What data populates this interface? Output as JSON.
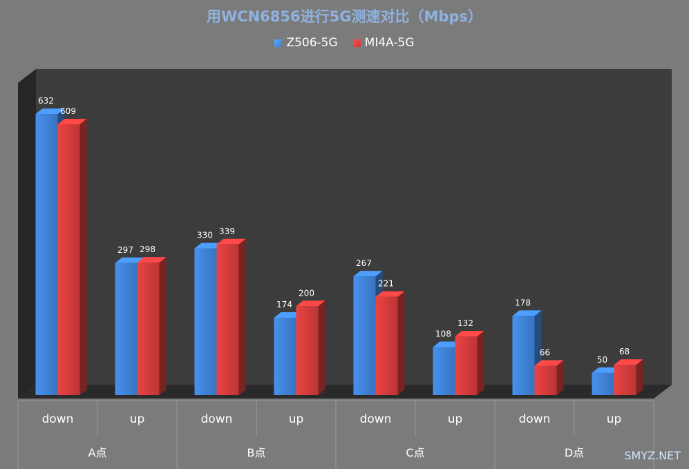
{
  "chart_data": {
    "type": "bar",
    "title": "用WCN6856进行5G测速对比（Mbps）",
    "groups": [
      "A点",
      "B点",
      "C点",
      "D点"
    ],
    "subcategories": [
      "down",
      "up"
    ],
    "categories": [
      "A点 down",
      "A点 up",
      "B点 down",
      "B点 up",
      "C点 down",
      "C点 up",
      "D点 down",
      "D点 up"
    ],
    "series": [
      {
        "name": "Z506-5G",
        "color": "#3d7ed0",
        "values": [
          632,
          297,
          330,
          174,
          267,
          108,
          178,
          50
        ]
      },
      {
        "name": "MI4A-5G",
        "color": "#cc3a3a",
        "values": [
          609,
          298,
          339,
          200,
          221,
          132,
          66,
          68
        ]
      }
    ],
    "ylim": [
      0,
      640
    ],
    "grid": false,
    "legend_position": "top-center",
    "style": "3d-clustered-column"
  },
  "watermark": "SMYZ.NET"
}
